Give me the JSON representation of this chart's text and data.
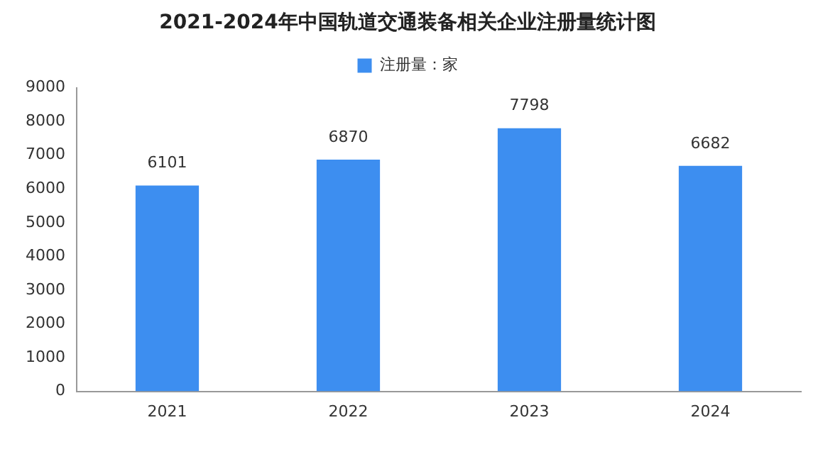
{
  "chart_data": {
    "type": "bar",
    "title": "2021-2024年中国轨道交通装备相关企业注册量统计图",
    "categories": [
      "2021",
      "2022",
      "2023",
      "2024"
    ],
    "series": [
      {
        "name": "注册量：家",
        "color": "#3d8ef0",
        "values": [
          6101,
          6870,
          7798,
          6682
        ]
      }
    ],
    "ylim": [
      0,
      9000
    ],
    "yticks": [
      0,
      1000,
      2000,
      3000,
      4000,
      5000,
      6000,
      7000,
      8000,
      9000
    ],
    "grid": false,
    "legend": "top",
    "data_labels": true
  }
}
